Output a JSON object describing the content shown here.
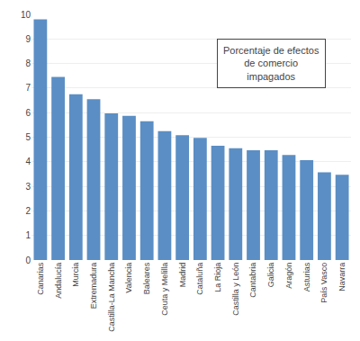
{
  "chart_data": {
    "type": "bar",
    "categories": [
      "Canarias",
      "Andalucía",
      "Murcia",
      "Extremadura",
      "Castilla-La Mancha",
      "Valencia",
      "Baleares",
      "Ceuta y Melilla",
      "Madrid",
      "Cataluña",
      "La Rioja",
      "Castilla y León",
      "Cantabria",
      "Galicia",
      "Aragón",
      "Asturias",
      "País Vasco",
      "Navarra"
    ],
    "values": [
      9.8,
      7.45,
      6.75,
      6.55,
      5.97,
      5.87,
      5.65,
      5.25,
      5.08,
      4.97,
      4.65,
      4.55,
      4.47,
      4.47,
      4.28,
      4.07,
      3.57,
      3.47
    ],
    "color": "#5b8ec4",
    "ylim": [
      0,
      10
    ],
    "yticks": [
      0,
      1,
      2,
      3,
      4,
      5,
      6,
      7,
      8,
      9,
      10
    ],
    "grid": true,
    "annotations": [
      "Porcentaje de efectos\nde comercio\nimpagados"
    ]
  }
}
